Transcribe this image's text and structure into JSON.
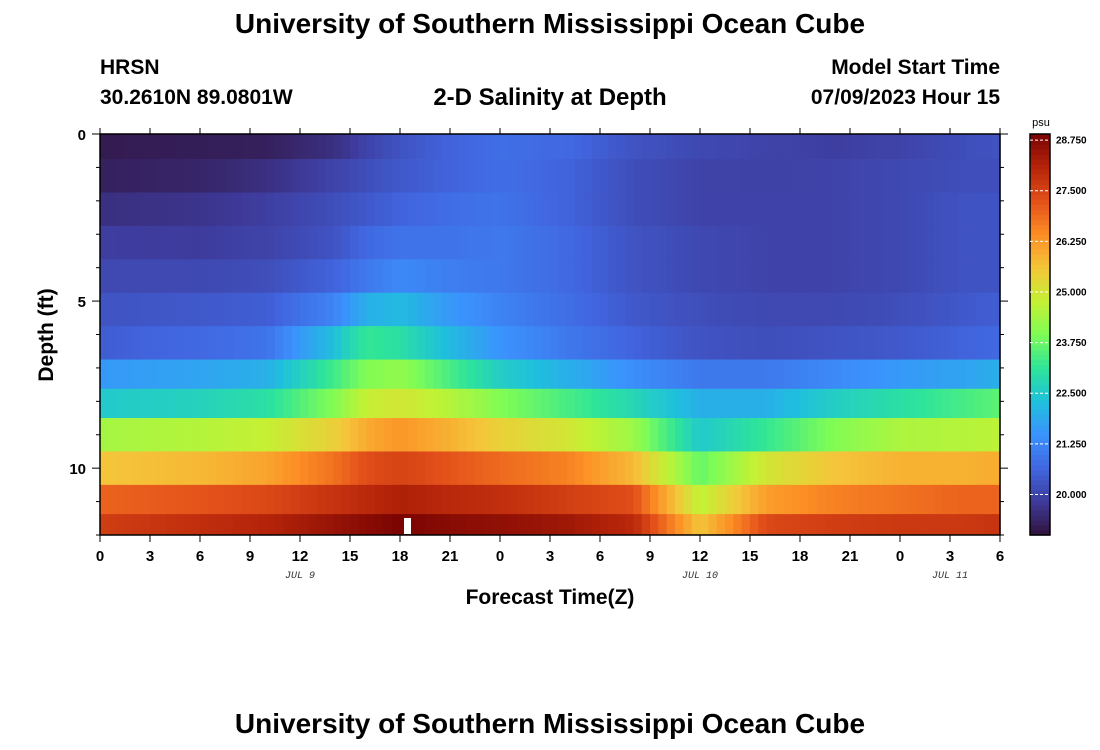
{
  "header": {
    "title": "University of Southern Mississippi Ocean Cube",
    "station": "HRSN",
    "coordinates": "30.2610N  89.0801W",
    "model_start_label": "Model Start Time",
    "model_start_value": "07/09/2023 Hour 15"
  },
  "footer": {
    "title": "University of Southern Mississippi Ocean Cube"
  },
  "colors": {
    "ramp": [
      "#30123b",
      "#3e3a9a",
      "#4166e0",
      "#3b92fd",
      "#1fc0dc",
      "#2ee49a",
      "#7efc56",
      "#c4f134",
      "#f4c63a",
      "#fc8e25",
      "#e3501a",
      "#b6250a",
      "#7a0403"
    ]
  },
  "chart_data": {
    "type": "heatmap",
    "title": "2-D Salinity at Depth",
    "xlabel": "Forecast Time(Z)",
    "ylabel": "Depth (ft)",
    "ylim": [
      0,
      12
    ],
    "y_ticks": [
      0,
      5,
      10
    ],
    "x_tick_labels": [
      "0",
      "3",
      "6",
      "9",
      "12",
      "15",
      "18",
      "21",
      "0",
      "3",
      "6",
      "9",
      "12",
      "15",
      "18",
      "21",
      "0",
      "3",
      "6"
    ],
    "x_hours": [
      0,
      3,
      6,
      9,
      12,
      15,
      18,
      21,
      24,
      27,
      30,
      33,
      36,
      39,
      42,
      45,
      48,
      51,
      54
    ],
    "day_labels": [
      {
        "text": "JUL 9",
        "hour": 12
      },
      {
        "text": "JUL 10",
        "hour": 36
      },
      {
        "text": "JUL 11",
        "hour": 51
      }
    ],
    "layer_depths_ft": [
      0.25,
      1.25,
      2.25,
      3.25,
      4.25,
      5.25,
      6.25,
      7.25,
      8.0,
      9.0,
      10.0,
      11.0,
      11.75
    ],
    "time_keys_hours": [
      0,
      6,
      10,
      14,
      16,
      18,
      21,
      24,
      28,
      32,
      36,
      40,
      44,
      48,
      52,
      54
    ],
    "salinity_rows": [
      [
        19.2,
        19.25,
        19.3,
        19.6,
        20.0,
        20.3,
        20.6,
        20.8,
        20.7,
        20.3,
        20.1,
        20.0,
        19.9,
        20.0,
        20.2,
        20.3
      ],
      [
        19.3,
        19.4,
        19.6,
        20.0,
        20.2,
        20.4,
        20.6,
        20.8,
        20.6,
        20.2,
        20.0,
        19.95,
        20.0,
        20.1,
        20.2,
        20.2
      ],
      [
        19.6,
        19.7,
        19.9,
        20.2,
        20.4,
        20.6,
        20.8,
        20.9,
        20.6,
        20.2,
        20.0,
        20.0,
        20.0,
        20.1,
        20.3,
        20.3
      ],
      [
        19.9,
        19.85,
        20.0,
        20.3,
        20.7,
        20.9,
        20.9,
        21.0,
        20.7,
        20.3,
        20.1,
        20.0,
        20.0,
        20.1,
        20.3,
        20.3
      ],
      [
        20.1,
        20.1,
        20.2,
        20.6,
        21.0,
        21.3,
        21.1,
        21.0,
        20.7,
        20.3,
        20.1,
        20.0,
        20.0,
        20.1,
        20.3,
        20.3
      ],
      [
        20.3,
        20.4,
        20.5,
        21.2,
        22.0,
        22.2,
        21.6,
        21.2,
        20.8,
        20.4,
        20.2,
        20.1,
        20.1,
        20.2,
        20.4,
        20.5
      ],
      [
        20.5,
        20.7,
        20.9,
        22.3,
        23.2,
        23.0,
        22.2,
        21.5,
        21.0,
        20.6,
        20.3,
        20.2,
        20.3,
        20.4,
        20.6,
        20.7
      ],
      [
        21.6,
        21.8,
        22.0,
        23.3,
        24.0,
        24.2,
        23.4,
        22.6,
        22.0,
        21.4,
        21.0,
        21.0,
        21.3,
        21.6,
        21.8,
        22.0
      ],
      [
        22.5,
        22.7,
        23.0,
        24.0,
        24.8,
        25.0,
        24.6,
        24.0,
        23.4,
        22.8,
        22.0,
        22.0,
        22.6,
        23.0,
        23.4,
        23.6
      ],
      [
        24.4,
        24.6,
        24.8,
        25.4,
        26.0,
        26.3,
        25.9,
        25.4,
        25.0,
        24.3,
        22.5,
        23.2,
        24.0,
        24.5,
        24.6,
        24.7
      ],
      [
        25.6,
        25.8,
        26.1,
        26.8,
        27.3,
        27.5,
        27.2,
        26.9,
        26.6,
        25.8,
        23.7,
        25.0,
        25.6,
        25.9,
        25.9,
        26.0
      ],
      [
        27.0,
        27.2,
        27.4,
        27.8,
        28.0,
        28.2,
        28.0,
        27.9,
        27.6,
        27.3,
        24.7,
        26.2,
        26.6,
        26.8,
        27.0,
        27.0
      ],
      [
        27.6,
        27.9,
        28.1,
        28.5,
        28.7,
        28.9,
        28.7,
        28.6,
        28.4,
        28.0,
        25.6,
        27.4,
        27.6,
        27.7,
        27.7,
        27.8
      ]
    ],
    "colorbar": {
      "unit": "psu",
      "min": 19.0,
      "max": 28.9,
      "tick_values": [
        20.0,
        21.25,
        22.5,
        23.75,
        25.0,
        26.25,
        27.5,
        28.75
      ],
      "tick_labels": [
        "20.000",
        "21.250",
        "22.500",
        "23.750",
        "25.000",
        "26.250",
        "27.500",
        "28.750"
      ]
    }
  }
}
